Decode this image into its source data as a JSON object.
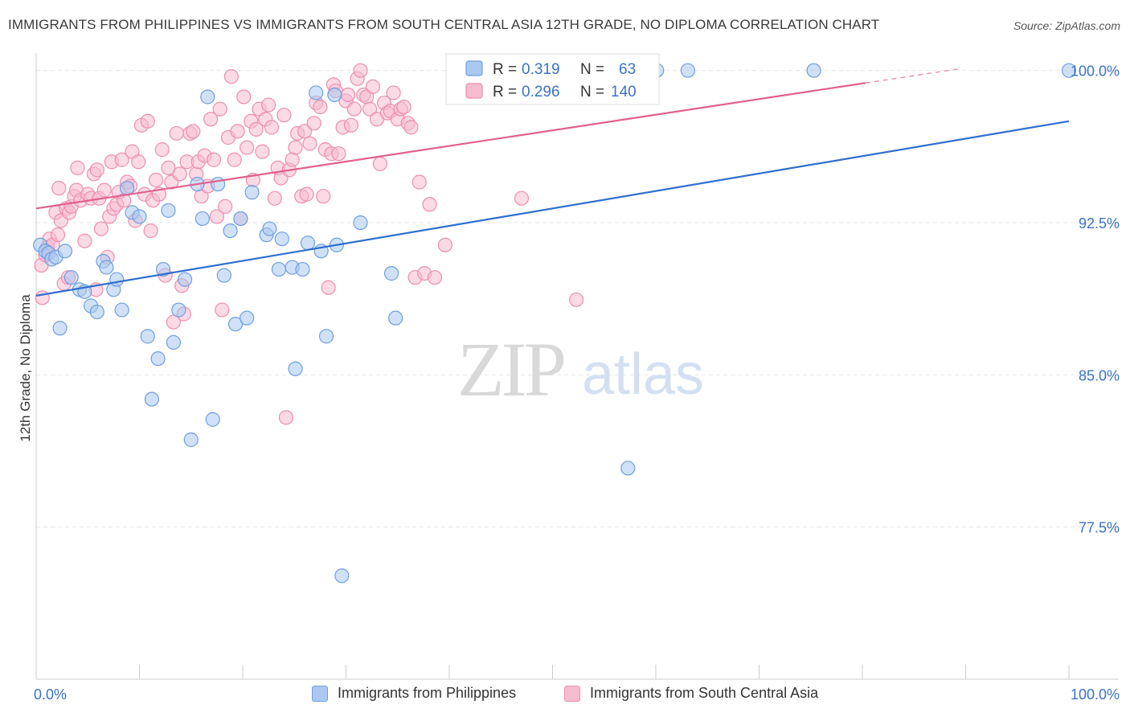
{
  "title": "IMMIGRANTS FROM PHILIPPINES VS IMMIGRANTS FROM SOUTH CENTRAL ASIA 12TH GRADE, NO DIPLOMA CORRELATION CHART",
  "source": "Source: ZipAtlas.com",
  "watermark": {
    "zip": "ZIP",
    "atlas": "atlas"
  },
  "colors": {
    "philippines_fill": "#aac8f0",
    "philippines_stroke": "#6f9fe0",
    "philippines_line": "#2f6fcf",
    "sca_fill": "#f7bcd0",
    "sca_stroke": "#ec8fb0",
    "sca_line": "#e0608f",
    "tick_label": "#3b73c4",
    "grid": "#e6e6e6"
  },
  "legend_stats": [
    {
      "r_label": "R =",
      "r_value": "0.319",
      "n_label": "N =",
      "n_value": "63"
    },
    {
      "r_label": "R =",
      "r_value": "0.296",
      "n_label": "N =",
      "n_value": "140"
    }
  ],
  "chart_data": {
    "type": "scatter",
    "title": "IMMIGRANTS FROM PHILIPPINES VS IMMIGRANTS FROM SOUTH CENTRAL ASIA 12TH GRADE, NO DIPLOMA CORRELATION CHART",
    "xlabel": "",
    "ylabel": "12th Grade, No Diploma",
    "xlim": [
      0,
      100
    ],
    "ylim": [
      70.0,
      100.7
    ],
    "x_tick_labels": [
      "0.0%",
      "100.0%"
    ],
    "y_ticks": [
      100.0,
      92.5,
      85.0,
      77.5
    ],
    "y_tick_labels": [
      "100.0%",
      "92.5%",
      "85.0%",
      "77.5%"
    ],
    "grid": true,
    "legend_position": "top-center",
    "series": [
      {
        "name": "Immigrants from Philippines",
        "trend": {
          "x": [
            0,
            100
          ],
          "y": [
            88.9,
            97.5
          ],
          "dashed_from": null
        },
        "points": [
          [
            0.4,
            91.4
          ],
          [
            0.9,
            91.1
          ],
          [
            1.2,
            91.0
          ],
          [
            1.5,
            90.7
          ],
          [
            1.9,
            90.8
          ],
          [
            2.3,
            87.3
          ],
          [
            2.8,
            91.1
          ],
          [
            3.4,
            89.8
          ],
          [
            4.2,
            89.2
          ],
          [
            4.7,
            89.1
          ],
          [
            5.3,
            88.4
          ],
          [
            5.9,
            88.1
          ],
          [
            6.5,
            90.6
          ],
          [
            6.8,
            90.3
          ],
          [
            7.5,
            89.2
          ],
          [
            7.8,
            89.7
          ],
          [
            8.3,
            88.2
          ],
          [
            8.8,
            94.2
          ],
          [
            9.3,
            93.0
          ],
          [
            10.0,
            92.8
          ],
          [
            10.8,
            86.9
          ],
          [
            11.2,
            83.8
          ],
          [
            11.8,
            85.8
          ],
          [
            12.3,
            90.2
          ],
          [
            12.8,
            93.1
          ],
          [
            13.3,
            86.6
          ],
          [
            13.8,
            88.2
          ],
          [
            14.4,
            89.7
          ],
          [
            15.0,
            81.8
          ],
          [
            15.6,
            94.4
          ],
          [
            16.1,
            92.7
          ],
          [
            16.6,
            98.7
          ],
          [
            17.1,
            82.8
          ],
          [
            17.6,
            94.4
          ],
          [
            18.2,
            89.9
          ],
          [
            18.8,
            92.1
          ],
          [
            19.3,
            87.5
          ],
          [
            19.8,
            92.7
          ],
          [
            20.4,
            87.8
          ],
          [
            20.9,
            94.0
          ],
          [
            22.3,
            91.9
          ],
          [
            22.6,
            92.2
          ],
          [
            23.5,
            90.2
          ],
          [
            23.8,
            91.7
          ],
          [
            24.8,
            90.3
          ],
          [
            25.1,
            85.3
          ],
          [
            25.8,
            90.2
          ],
          [
            26.3,
            91.5
          ],
          [
            27.1,
            98.9
          ],
          [
            27.6,
            91.1
          ],
          [
            28.1,
            86.9
          ],
          [
            28.9,
            98.8
          ],
          [
            29.1,
            91.4
          ],
          [
            31.4,
            92.5
          ],
          [
            34.4,
            90.0
          ],
          [
            34.8,
            87.8
          ],
          [
            47.8,
            100.0
          ],
          [
            57.3,
            80.4
          ],
          [
            60.1,
            100.0
          ],
          [
            63.1,
            100.0
          ],
          [
            75.3,
            100.0
          ],
          [
            100.0,
            100.0
          ],
          [
            29.6,
            75.1
          ]
        ]
      },
      {
        "name": "Immigrants from South Central Asia",
        "trend": {
          "x": [
            0,
            100
          ],
          "y": [
            93.2,
            100.9
          ],
          "dashed_from": 80.3
        },
        "points": [
          [
            0.5,
            90.4
          ],
          [
            0.6,
            88.8
          ],
          [
            0.9,
            90.9
          ],
          [
            1.1,
            91.3
          ],
          [
            1.3,
            91.7
          ],
          [
            1.6,
            91.4
          ],
          [
            1.9,
            93.0
          ],
          [
            2.1,
            91.9
          ],
          [
            2.4,
            92.6
          ],
          [
            2.7,
            89.5
          ],
          [
            2.9,
            93.2
          ],
          [
            3.2,
            93.0
          ],
          [
            3.4,
            93.3
          ],
          [
            3.7,
            93.8
          ],
          [
            3.9,
            94.1
          ],
          [
            4.0,
            95.2
          ],
          [
            4.3,
            93.6
          ],
          [
            4.7,
            91.6
          ],
          [
            5.0,
            93.9
          ],
          [
            5.3,
            93.7
          ],
          [
            5.6,
            94.9
          ],
          [
            5.9,
            95.1
          ],
          [
            6.1,
            93.7
          ],
          [
            6.3,
            92.2
          ],
          [
            6.6,
            94.1
          ],
          [
            6.9,
            90.8
          ],
          [
            7.1,
            92.8
          ],
          [
            7.3,
            95.5
          ],
          [
            7.5,
            93.2
          ],
          [
            7.8,
            93.4
          ],
          [
            8.0,
            94.0
          ],
          [
            8.3,
            95.6
          ],
          [
            8.5,
            93.6
          ],
          [
            8.8,
            94.5
          ],
          [
            9.1,
            94.3
          ],
          [
            9.3,
            96.0
          ],
          [
            9.6,
            92.6
          ],
          [
            9.9,
            95.5
          ],
          [
            10.2,
            97.3
          ],
          [
            10.5,
            93.9
          ],
          [
            10.8,
            97.5
          ],
          [
            11.1,
            92.1
          ],
          [
            11.3,
            93.6
          ],
          [
            11.6,
            94.6
          ],
          [
            11.9,
            93.9
          ],
          [
            12.2,
            96.1
          ],
          [
            12.5,
            89.9
          ],
          [
            12.8,
            95.2
          ],
          [
            13.1,
            94.5
          ],
          [
            13.3,
            87.6
          ],
          [
            13.6,
            96.9
          ],
          [
            13.9,
            94.9
          ],
          [
            14.1,
            89.4
          ],
          [
            14.3,
            88.0
          ],
          [
            14.6,
            95.5
          ],
          [
            14.9,
            96.9
          ],
          [
            15.2,
            97.0
          ],
          [
            15.5,
            94.9
          ],
          [
            15.7,
            95.5
          ],
          [
            16.0,
            93.8
          ],
          [
            16.3,
            95.8
          ],
          [
            16.6,
            94.3
          ],
          [
            16.9,
            97.6
          ],
          [
            17.2,
            95.6
          ],
          [
            17.5,
            92.8
          ],
          [
            17.8,
            98.1
          ],
          [
            18.0,
            88.2
          ],
          [
            18.3,
            93.3
          ],
          [
            18.6,
            96.7
          ],
          [
            18.9,
            99.7
          ],
          [
            19.2,
            95.6
          ],
          [
            19.5,
            97.0
          ],
          [
            19.8,
            92.7
          ],
          [
            20.1,
            98.7
          ],
          [
            20.4,
            96.2
          ],
          [
            20.8,
            97.5
          ],
          [
            21.0,
            94.6
          ],
          [
            21.3,
            97.1
          ],
          [
            21.6,
            98.1
          ],
          [
            21.9,
            96.0
          ],
          [
            22.2,
            97.6
          ],
          [
            22.5,
            98.3
          ],
          [
            22.8,
            97.2
          ],
          [
            23.1,
            93.7
          ],
          [
            23.4,
            95.2
          ],
          [
            23.7,
            94.7
          ],
          [
            24.0,
            97.8
          ],
          [
            24.2,
            82.9
          ],
          [
            24.5,
            95.1
          ],
          [
            24.8,
            95.6
          ],
          [
            25.1,
            96.2
          ],
          [
            25.3,
            96.9
          ],
          [
            25.7,
            93.8
          ],
          [
            26.0,
            97.0
          ],
          [
            26.2,
            93.9
          ],
          [
            26.5,
            96.4
          ],
          [
            26.9,
            97.4
          ],
          [
            27.1,
            98.4
          ],
          [
            27.5,
            98.2
          ],
          [
            27.8,
            93.8
          ],
          [
            28.0,
            96.1
          ],
          [
            28.3,
            89.3
          ],
          [
            28.6,
            95.9
          ],
          [
            28.8,
            99.3
          ],
          [
            29.0,
            99.0
          ],
          [
            29.3,
            95.9
          ],
          [
            29.7,
            97.2
          ],
          [
            30.0,
            98.5
          ],
          [
            30.2,
            98.8
          ],
          [
            30.5,
            97.3
          ],
          [
            30.8,
            98.1
          ],
          [
            31.1,
            99.6
          ],
          [
            31.4,
            100.0
          ],
          [
            31.7,
            98.8
          ],
          [
            32.0,
            98.7
          ],
          [
            32.3,
            98.1
          ],
          [
            32.6,
            99.2
          ],
          [
            33.0,
            97.6
          ],
          [
            33.3,
            95.4
          ],
          [
            33.7,
            98.4
          ],
          [
            34.0,
            97.9
          ],
          [
            34.3,
            98.0
          ],
          [
            34.6,
            98.9
          ],
          [
            35.0,
            97.6
          ],
          [
            35.3,
            98.1
          ],
          [
            35.6,
            98.2
          ],
          [
            36.0,
            97.4
          ],
          [
            36.3,
            97.2
          ],
          [
            36.7,
            89.8
          ],
          [
            37.1,
            94.5
          ],
          [
            37.6,
            90.0
          ],
          [
            38.1,
            93.4
          ],
          [
            38.6,
            89.8
          ],
          [
            39.6,
            91.4
          ],
          [
            47.0,
            93.7
          ],
          [
            52.3,
            88.7
          ],
          [
            3.1,
            89.8
          ],
          [
            5.8,
            89.2
          ],
          [
            2.2,
            94.2
          ]
        ]
      }
    ]
  },
  "bottom_legend": [
    {
      "label": "Immigrants from Philippines"
    },
    {
      "label": "Immigrants from South Central Asia"
    }
  ]
}
